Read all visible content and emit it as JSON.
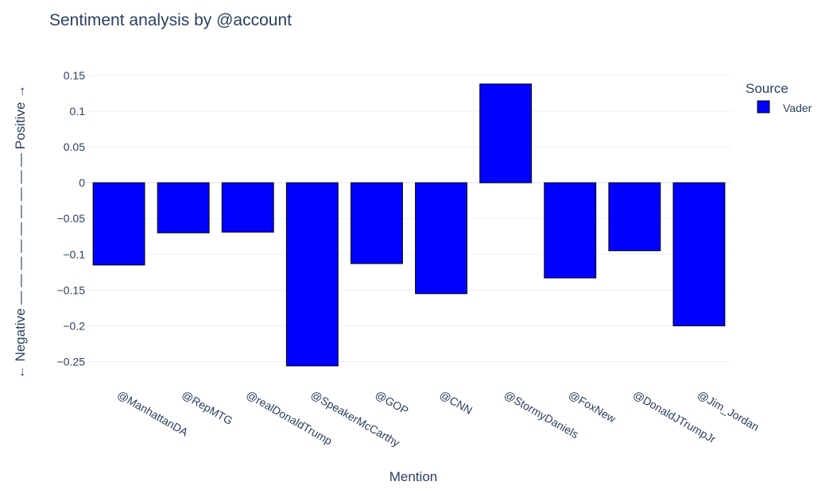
{
  "chart_data": {
    "type": "bar",
    "title": "Sentiment analysis by @account",
    "xlabel": "Mention",
    "ylabel": "← Negative — — — — — — — — — Positive →",
    "categories": [
      "@ManhattanDA",
      "@RepMTG",
      "@realDonaldTrump",
      "@SpeakerMcCarthy",
      "@GOP",
      "@CNN",
      "@StormyDaniels",
      "@FoxNew",
      "@DonaldJTrumpJr",
      "@Jim_Jordan"
    ],
    "series": [
      {
        "name": "Vader",
        "color": "#0000ff",
        "values": [
          -0.115,
          -0.07,
          -0.069,
          -0.256,
          -0.113,
          -0.155,
          0.138,
          -0.133,
          -0.095,
          -0.2
        ]
      }
    ],
    "ylim": [
      -0.275,
      0.16
    ],
    "yticks": [
      0.15,
      0.1,
      0.05,
      0,
      -0.05,
      -0.1,
      -0.15,
      -0.2,
      -0.25
    ],
    "ytick_labels": [
      "0.15",
      "0.1",
      "0.05",
      "0",
      "−0.05",
      "−0.1",
      "−0.15",
      "−0.2",
      "−0.25"
    ],
    "grid": true,
    "legend": {
      "title": "Source",
      "placement": "top-right"
    }
  }
}
